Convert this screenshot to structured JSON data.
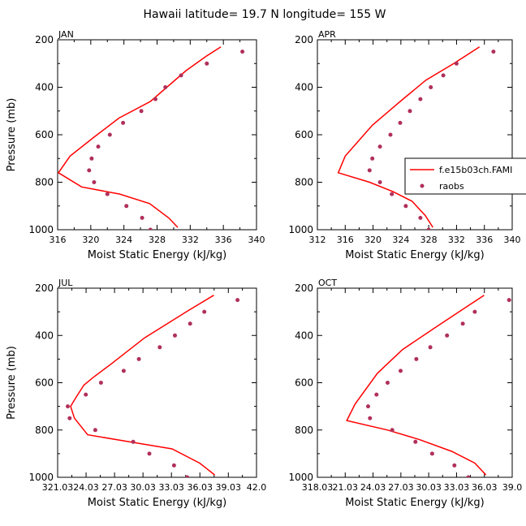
{
  "title": "Hawaii   latitude= 19.7 N longitude= 155 W",
  "colors": {
    "model": "#ff0000",
    "obs": "#b0305a",
    "axis": "#000000"
  },
  "legend": {
    "model_label": "f.e15b03ch.FAMI",
    "obs_label": "raobs"
  },
  "chart_data": [
    {
      "type": "line",
      "panel": "JAN",
      "xlabel": "Moist Static Energy (kJ/kg)",
      "ylabel": "Pressure (mb)",
      "xlim": [
        316,
        340
      ],
      "ylim": [
        1000,
        200
      ],
      "y_reversed": true,
      "xticks": [
        316,
        320,
        324,
        328,
        332,
        336,
        340
      ],
      "xtick_labels": [
        "316",
        "320",
        "324",
        "328",
        "332",
        "336",
        "340"
      ],
      "yticks": [
        200,
        400,
        600,
        800,
        1000
      ],
      "model": {
        "name": "f.e15b03ch.FAMI",
        "points": [
          [
            335.7,
            230
          ],
          [
            333.9,
            270
          ],
          [
            331.5,
            330
          ],
          [
            327.2,
            460
          ],
          [
            323.4,
            530
          ],
          [
            320.4,
            610
          ],
          [
            317.5,
            690
          ],
          [
            316.1,
            760
          ],
          [
            318.9,
            820
          ],
          [
            323.5,
            850
          ],
          [
            327.1,
            890
          ],
          [
            329.4,
            950
          ],
          [
            330.5,
            990
          ]
        ]
      },
      "obs": {
        "name": "raobs",
        "points": [
          [
            338.3,
            250
          ],
          [
            334.0,
            300
          ],
          [
            330.9,
            350
          ],
          [
            329.0,
            400
          ],
          [
            327.8,
            450
          ],
          [
            326.1,
            500
          ],
          [
            323.9,
            550
          ],
          [
            322.3,
            600
          ],
          [
            320.9,
            650
          ],
          [
            320.1,
            700
          ],
          [
            319.8,
            750
          ],
          [
            320.4,
            800
          ],
          [
            322.0,
            850
          ],
          [
            324.3,
            900
          ],
          [
            326.2,
            950
          ],
          [
            327.2,
            1000
          ]
        ]
      }
    },
    {
      "type": "line",
      "panel": "APR",
      "xlabel": "Moist Static Energy (kJ/kg)",
      "ylabel": "",
      "xlim": [
        312,
        340
      ],
      "ylim": [
        1000,
        200
      ],
      "y_reversed": true,
      "xticks": [
        312,
        316,
        320,
        324,
        328,
        332,
        336,
        340
      ],
      "xtick_labels": [
        "312",
        "316",
        "320",
        "324",
        "328",
        "332",
        "336",
        "340"
      ],
      "yticks": [
        200,
        400,
        600,
        800,
        1000
      ],
      "model": {
        "name": "f.e15b03ch.FAMI",
        "points": [
          [
            335.3,
            230
          ],
          [
            331.6,
            300
          ],
          [
            327.6,
            370
          ],
          [
            323.9,
            460
          ],
          [
            319.9,
            560
          ],
          [
            316.0,
            690
          ],
          [
            315.0,
            760
          ],
          [
            319.5,
            800
          ],
          [
            322.9,
            840
          ],
          [
            325.6,
            880
          ],
          [
            327.5,
            940
          ],
          [
            328.6,
            990
          ]
        ]
      },
      "obs": {
        "name": "raobs",
        "points": [
          [
            337.3,
            250
          ],
          [
            332.0,
            300
          ],
          [
            330.1,
            350
          ],
          [
            328.3,
            400
          ],
          [
            326.8,
            450
          ],
          [
            325.3,
            500
          ],
          [
            323.9,
            550
          ],
          [
            322.5,
            600
          ],
          [
            321.0,
            650
          ],
          [
            319.9,
            700
          ],
          [
            319.5,
            750
          ],
          [
            321.0,
            800
          ],
          [
            322.7,
            850
          ],
          [
            324.7,
            900
          ],
          [
            326.8,
            950
          ],
          [
            328.0,
            1000
          ]
        ]
      }
    },
    {
      "type": "line",
      "panel": "JUL",
      "xlabel": "Moist Static Energy (kJ/kg)",
      "ylabel": "Pressure (mb)",
      "xlim": [
        321.03,
        342.0
      ],
      "ylim": [
        1000,
        200
      ],
      "y_reversed": true,
      "xticks": [
        321.03,
        324.03,
        327.03,
        330.03,
        333.03,
        336.03,
        339.03,
        342.0
      ],
      "xtick_labels": [
        "321.03",
        "24.03",
        "27.03",
        "30.03",
        "33.03",
        "36.03",
        "39.03",
        "42.0"
      ],
      "yticks": [
        200,
        400,
        600,
        800,
        1000
      ],
      "model": {
        "name": "f.e15b03ch.FAMI",
        "points": [
          [
            337.5,
            230
          ],
          [
            334.6,
            300
          ],
          [
            330.2,
            410
          ],
          [
            326.7,
            520
          ],
          [
            324.7,
            580
          ],
          [
            323.8,
            610
          ],
          [
            323.0,
            660
          ],
          [
            322.4,
            700
          ],
          [
            322.8,
            750
          ],
          [
            324.2,
            820
          ],
          [
            328.6,
            850
          ],
          [
            333.1,
            880
          ],
          [
            336.0,
            940
          ],
          [
            337.6,
            990
          ]
        ]
      },
      "obs": {
        "name": "raobs",
        "points": [
          [
            340.0,
            250
          ],
          [
            336.5,
            300
          ],
          [
            335.0,
            350
          ],
          [
            333.4,
            400
          ],
          [
            331.8,
            450
          ],
          [
            329.6,
            500
          ],
          [
            328.0,
            550
          ],
          [
            325.6,
            600
          ],
          [
            324.0,
            650
          ],
          [
            322.1,
            700
          ],
          [
            322.3,
            750
          ],
          [
            325.0,
            800
          ],
          [
            329.0,
            850
          ],
          [
            330.7,
            900
          ],
          [
            333.3,
            950
          ],
          [
            334.7,
            1000
          ]
        ]
      }
    },
    {
      "type": "line",
      "panel": "OCT",
      "xlabel": "Moist Static Energy (kJ/kg)",
      "ylabel": "",
      "xlim": [
        318.03,
        339.03
      ],
      "ylim": [
        1000,
        200
      ],
      "y_reversed": true,
      "xticks": [
        318.03,
        321.03,
        324.03,
        327.03,
        330.03,
        333.03,
        336.03,
        339.03
      ],
      "xtick_labels": [
        "318.03",
        "21.03",
        "24.03",
        "27.03",
        "30.03",
        "33.03",
        "36.03",
        "39.0"
      ],
      "yticks": [
        200,
        400,
        600,
        800,
        1000
      ],
      "model": {
        "name": "f.e15b03ch.FAMI",
        "points": [
          [
            336.0,
            230
          ],
          [
            333.3,
            300
          ],
          [
            330.6,
            370
          ],
          [
            327.2,
            460
          ],
          [
            324.5,
            560
          ],
          [
            322.1,
            690
          ],
          [
            321.2,
            760
          ],
          [
            325.6,
            800
          ],
          [
            329.0,
            840
          ],
          [
            332.5,
            890
          ],
          [
            335.0,
            940
          ],
          [
            336.2,
            990
          ]
        ]
      },
      "obs": {
        "name": "raobs",
        "points": [
          [
            338.7,
            250
          ],
          [
            335.0,
            300
          ],
          [
            333.7,
            350
          ],
          [
            332.0,
            400
          ],
          [
            330.2,
            450
          ],
          [
            328.7,
            500
          ],
          [
            327.0,
            550
          ],
          [
            325.6,
            600
          ],
          [
            324.4,
            650
          ],
          [
            323.5,
            700
          ],
          [
            323.7,
            750
          ],
          [
            326.1,
            800
          ],
          [
            328.6,
            850
          ],
          [
            330.4,
            900
          ],
          [
            332.8,
            950
          ],
          [
            334.3,
            1000
          ]
        ]
      }
    }
  ]
}
